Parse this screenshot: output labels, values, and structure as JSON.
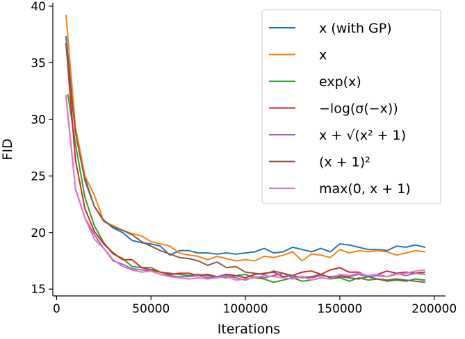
{
  "chart_data": {
    "type": "line",
    "xlabel": "Iterations",
    "ylabel": "FID",
    "xlim": [
      -2000,
      206000
    ],
    "ylim": [
      14.4,
      40.3
    ],
    "xticks": [
      0,
      50000,
      100000,
      150000,
      200000
    ],
    "xtick_labels": [
      "0",
      "50000",
      "100000",
      "150000",
      "200000"
    ],
    "yticks": [
      15,
      20,
      25,
      30,
      35,
      40
    ],
    "ytick_labels": [
      "15",
      "20",
      "25",
      "30",
      "35",
      "40"
    ],
    "grid": false,
    "legend_position": "top-right",
    "series": [
      {
        "name": "x (with GP)",
        "color": "#1f77b4",
        "x": [
          5000,
          10000,
          15000,
          20000,
          25000,
          30000,
          35000,
          40000,
          45000,
          50000,
          55000,
          60000,
          65000,
          70000,
          75000,
          80000,
          85000,
          90000,
          95000,
          100000,
          105000,
          110000,
          115000,
          120000,
          125000,
          130000,
          135000,
          140000,
          145000,
          150000,
          155000,
          160000,
          165000,
          170000,
          175000,
          180000,
          185000,
          190000,
          195000
        ],
        "y": [
          37.3,
          29.0,
          24.8,
          22.3,
          21.1,
          20.4,
          20.0,
          19.3,
          19.1,
          19.0,
          18.8,
          18.0,
          18.4,
          18.4,
          18.2,
          18.2,
          18.1,
          18.2,
          18.1,
          18.2,
          18.3,
          18.6,
          18.2,
          18.3,
          18.7,
          18.5,
          18.3,
          18.6,
          18.3,
          19.0,
          18.9,
          18.7,
          18.5,
          18.5,
          18.4,
          18.8,
          18.7,
          18.9,
          18.7
        ]
      },
      {
        "name": "x",
        "color": "#ff7f0e",
        "x": [
          5000,
          10000,
          15000,
          20000,
          25000,
          30000,
          35000,
          40000,
          45000,
          50000,
          55000,
          60000,
          65000,
          70000,
          75000,
          80000,
          85000,
          90000,
          95000,
          100000,
          105000,
          110000,
          115000,
          120000,
          125000,
          130000,
          135000,
          140000,
          145000,
          150000,
          155000,
          160000,
          165000,
          170000,
          175000,
          180000,
          185000,
          190000,
          195000
        ],
        "y": [
          39.2,
          29.3,
          25.0,
          23.3,
          21.0,
          20.6,
          20.2,
          19.9,
          19.7,
          19.2,
          19.0,
          18.8,
          18.2,
          18.0,
          17.9,
          17.6,
          17.9,
          17.7,
          17.5,
          17.6,
          17.5,
          17.9,
          17.8,
          18.0,
          18.3,
          17.5,
          18.1,
          18.0,
          17.8,
          18.5,
          18.2,
          18.4,
          18.3,
          18.4,
          18.3,
          18.0,
          18.2,
          18.4,
          18.3
        ]
      },
      {
        "name": "exp(x)",
        "color": "#2ca02c",
        "x": [
          6000,
          10000,
          15000,
          20000,
          25000,
          30000,
          35000,
          40000,
          45000,
          50000,
          55000,
          60000,
          65000,
          70000,
          75000,
          80000,
          85000,
          90000,
          95000,
          100000,
          105000,
          110000,
          115000,
          120000,
          125000,
          130000,
          135000,
          140000,
          145000,
          150000,
          155000,
          160000,
          165000,
          170000,
          175000,
          180000,
          185000,
          190000,
          195000
        ],
        "y": [
          32.2,
          27.8,
          23.1,
          20.6,
          19.1,
          18.1,
          17.7,
          17.0,
          16.9,
          16.9,
          16.5,
          16.4,
          16.3,
          16.2,
          16.3,
          16.2,
          16.1,
          16.0,
          16.2,
          16.3,
          16.0,
          15.9,
          15.6,
          15.8,
          16.0,
          15.7,
          15.8,
          16.0,
          15.9,
          16.0,
          15.7,
          16.0,
          15.8,
          15.9,
          15.7,
          15.8,
          15.7,
          15.9,
          15.8
        ]
      },
      {
        "name": "−log(σ(−x))",
        "color": "#d62728",
        "x": [
          5000,
          10000,
          15000,
          20000,
          25000,
          30000,
          35000,
          40000,
          45000,
          50000,
          55000,
          60000,
          65000,
          70000,
          75000,
          80000,
          85000,
          90000,
          95000,
          100000,
          105000,
          110000,
          115000,
          120000,
          125000,
          130000,
          135000,
          140000,
          145000,
          150000,
          155000,
          160000,
          165000,
          170000,
          175000,
          180000,
          185000,
          190000,
          195000
        ],
        "y": [
          36.7,
          26.4,
          22.1,
          20.1,
          19.0,
          18.2,
          17.6,
          17.6,
          16.9,
          16.7,
          16.5,
          16.3,
          16.4,
          16.4,
          16.2,
          16.3,
          16.1,
          16.3,
          16.2,
          16.0,
          16.3,
          16.4,
          16.5,
          16.1,
          16.2,
          16.5,
          16.6,
          16.3,
          16.7,
          16.9,
          16.5,
          16.5,
          16.1,
          16.3,
          16.6,
          16.4,
          16.5,
          16.4,
          16.5
        ]
      },
      {
        "name": "x + √(x² + 1)",
        "color": "#9467bd",
        "x": [
          5000,
          10000,
          15000,
          20000,
          25000,
          30000,
          35000,
          40000,
          45000,
          50000,
          55000,
          60000,
          65000,
          70000,
          75000,
          80000,
          85000,
          90000,
          95000,
          100000,
          105000,
          110000,
          115000,
          120000,
          125000,
          130000,
          135000,
          140000,
          145000,
          150000,
          155000,
          160000,
          165000,
          170000,
          175000,
          180000,
          185000,
          190000,
          195000
        ],
        "y": [
          32.0,
          23.8,
          21.3,
          19.8,
          18.6,
          17.5,
          17.2,
          16.8,
          16.7,
          16.6,
          16.3,
          16.2,
          16.1,
          16.1,
          16.2,
          16.0,
          16.1,
          16.2,
          16.0,
          15.8,
          16.1,
          16.0,
          16.2,
          16.4,
          16.0,
          16.1,
          16.0,
          16.2,
          16.1,
          16.2,
          16.1,
          16.3,
          16.1,
          16.2,
          16.1,
          16.4,
          16.2,
          16.4,
          16.3
        ]
      },
      {
        "name": "(x + 1)²",
        "color": "#8c564b",
        "x": [
          5000,
          10000,
          15000,
          20000,
          25000,
          30000,
          35000,
          40000,
          45000,
          50000,
          55000,
          60000,
          65000,
          70000,
          75000,
          80000,
          85000,
          90000,
          95000,
          100000,
          105000,
          110000,
          115000,
          120000,
          125000,
          130000,
          135000,
          140000,
          145000,
          150000,
          155000,
          160000,
          165000,
          170000,
          175000,
          180000,
          185000,
          190000,
          195000
        ],
        "y": [
          36.6,
          28.8,
          24.6,
          22.3,
          21.0,
          20.5,
          20.2,
          19.8,
          19.2,
          18.8,
          18.4,
          18.1,
          17.8,
          17.7,
          17.5,
          17.1,
          17.4,
          16.9,
          17.0,
          16.5,
          16.4,
          16.3,
          16.6,
          16.4,
          16.2,
          16.0,
          16.1,
          16.3,
          16.0,
          16.1,
          16.0,
          15.9,
          16.1,
          15.9,
          15.8,
          15.9,
          15.8,
          15.7,
          15.6
        ]
      },
      {
        "name": "max(0, x + 1)",
        "color": "#e377c2",
        "x": [
          5000,
          10000,
          15000,
          20000,
          25000,
          30000,
          35000,
          40000,
          45000,
          50000,
          55000,
          60000,
          65000,
          70000,
          75000,
          80000,
          85000,
          90000,
          95000,
          100000,
          105000,
          110000,
          115000,
          120000,
          125000,
          130000,
          135000,
          140000,
          145000,
          150000,
          155000,
          160000,
          165000,
          170000,
          175000,
          180000,
          185000,
          190000,
          195000
        ],
        "y": [
          32.1,
          23.9,
          21.3,
          19.4,
          18.6,
          17.6,
          17.0,
          16.7,
          16.5,
          16.6,
          16.3,
          16.1,
          16.0,
          15.9,
          16.0,
          15.9,
          16.0,
          16.1,
          15.8,
          15.9,
          16.0,
          16.2,
          16.1,
          16.0,
          15.9,
          16.1,
          15.8,
          16.0,
          15.9,
          16.3,
          16.2,
          16.4,
          16.2,
          16.3,
          16.1,
          16.3,
          16.4,
          16.6,
          16.7
        ]
      }
    ]
  }
}
